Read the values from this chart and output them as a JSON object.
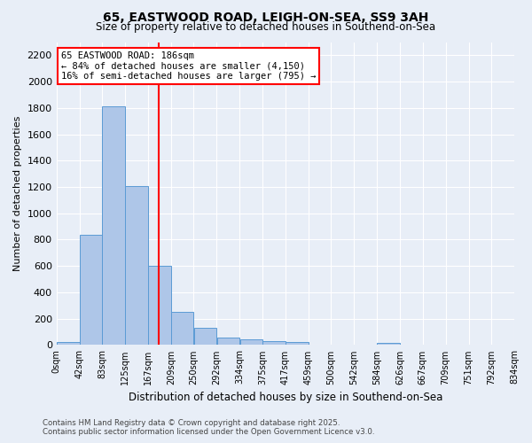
{
  "title_line1": "65, EASTWOOD ROAD, LEIGH-ON-SEA, SS9 3AH",
  "title_line2": "Size of property relative to detached houses in Southend-on-Sea",
  "xlabel": "Distribution of detached houses by size in Southend-on-Sea",
  "ylabel": "Number of detached properties",
  "bar_color": "#aec6e8",
  "bar_edge_color": "#5b9bd5",
  "background_color": "#e8eef7",
  "grid_color": "#ffffff",
  "vline_x": 186,
  "vline_color": "red",
  "annotation_text": "65 EASTWOOD ROAD: 186sqm\n← 84% of detached houses are smaller (4,150)\n16% of semi-detached houses are larger (795) →",
  "annotation_box_color": "white",
  "annotation_edge_color": "red",
  "bin_edges": [
    0,
    42,
    83,
    125,
    167,
    209,
    250,
    292,
    334,
    375,
    417,
    459,
    500,
    542,
    584,
    626,
    667,
    709,
    751,
    792,
    834
  ],
  "bar_heights": [
    25,
    840,
    1810,
    1210,
    600,
    255,
    130,
    55,
    45,
    30,
    20,
    0,
    0,
    0,
    15,
    0,
    0,
    0,
    0,
    0
  ],
  "ylim": [
    0,
    2300
  ],
  "yticks": [
    0,
    200,
    400,
    600,
    800,
    1000,
    1200,
    1400,
    1600,
    1800,
    2000,
    2200
  ],
  "xlim": [
    0,
    834
  ],
  "footnote_line1": "Contains HM Land Registry data © Crown copyright and database right 2025.",
  "footnote_line2": "Contains public sector information licensed under the Open Government Licence v3.0."
}
